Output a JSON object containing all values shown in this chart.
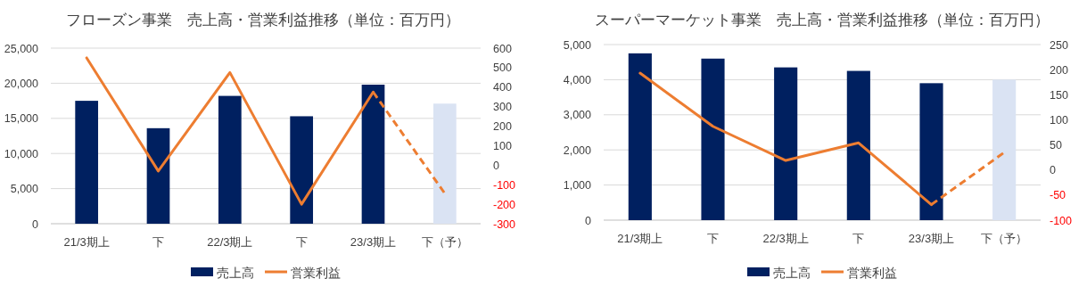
{
  "chart_data": [
    {
      "type": "bar",
      "title": "フローズン事業　売上高・営業利益推移（単位：百万円）",
      "categories": [
        "21/3期上",
        "下",
        "22/3期上",
        "下",
        "23/3期上",
        "下（予）"
      ],
      "series": [
        {
          "name": "売上高",
          "color": "#002060",
          "colors": [
            "#002060",
            "#002060",
            "#002060",
            "#002060",
            "#002060",
            "#dae3f3"
          ],
          "values": [
            17500,
            13600,
            18200,
            15300,
            19800,
            17100
          ]
        },
        {
          "name": "営業利益",
          "type": "line",
          "axis": "y2",
          "color": "#ed7d31",
          "line_style": "solid",
          "values": [
            550,
            -30,
            475,
            -200,
            375,
            null
          ]
        },
        {
          "type": "line",
          "axis": "y2",
          "color": "#ed7d31",
          "line_style": "dashed",
          "values": [
            null,
            null,
            null,
            null,
            375,
            -145
          ]
        }
      ],
      "ylim": [
        0,
        25000
      ],
      "yticks": [
        0,
        {
          "value": 5000,
          "label": "5,000"
        },
        {
          "value": 10000,
          "label": "10,000"
        },
        {
          "value": 15000,
          "label": "15,000"
        },
        {
          "value": 20000,
          "label": "20,000"
        },
        {
          "value": 25000,
          "label": "25,000"
        }
      ],
      "y2lim": [
        -300,
        600
      ],
      "y2ticks": [
        -300,
        -200,
        -100,
        0,
        100,
        200,
        300,
        400,
        500,
        600
      ],
      "grid": "y",
      "legend": "bottom"
    },
    {
      "type": "bar",
      "title": "スーパーマーケット事業　売上高・営業利益推移（単位：百万円）",
      "categories": [
        "21/3期上",
        "下",
        "22/3期上",
        "下",
        "23/3期上",
        "下（予）"
      ],
      "series": [
        {
          "name": "売上高",
          "color": "#002060",
          "colors": [
            "#002060",
            "#002060",
            "#002060",
            "#002060",
            "#002060",
            "#dae3f3"
          ],
          "values": [
            4750,
            4600,
            4350,
            4250,
            3900,
            4000
          ]
        },
        {
          "name": "営業利益",
          "type": "line",
          "axis": "y2",
          "color": "#ed7d31",
          "line_style": "solid",
          "values": [
            193,
            87,
            19,
            54,
            -69,
            null
          ]
        },
        {
          "type": "line",
          "axis": "y2",
          "color": "#ed7d31",
          "line_style": "dashed",
          "values": [
            null,
            null,
            null,
            null,
            -69,
            35
          ]
        }
      ],
      "ylim": [
        0,
        5000
      ],
      "yticks": [
        0,
        {
          "value": 1000,
          "label": "1,000"
        },
        {
          "value": 2000,
          "label": "2,000"
        },
        {
          "value": 3000,
          "label": "3,000"
        },
        {
          "value": 4000,
          "label": "4,000"
        },
        {
          "value": 5000,
          "label": "5,000"
        }
      ],
      "y2lim": [
        -100,
        250
      ],
      "y2ticks": [
        -100,
        -50,
        0,
        50,
        100,
        150,
        200,
        250
      ],
      "grid": "y",
      "legend": "bottom"
    }
  ]
}
